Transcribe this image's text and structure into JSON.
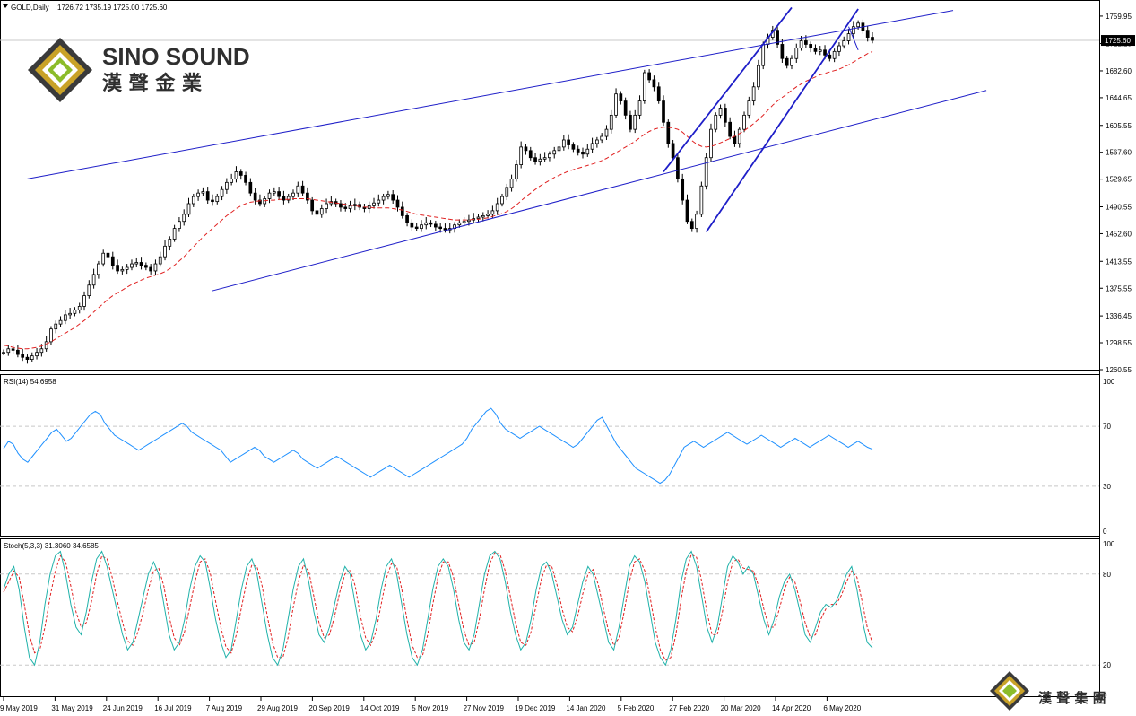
{
  "header": {
    "symbol_title": "GOLD,Daily",
    "ohlc": "1726.72 1735.19 1725.00 1725.60"
  },
  "brand": {
    "name_en": "SINO SOUND",
    "name_cn": "漢 聲 金 業",
    "footer_cn": "漢 聲 集 團"
  },
  "colors": {
    "candle": "#000000",
    "channel_line": "#1e1ec8",
    "ma_line": "#e02020",
    "rsi_line": "#1e90ff",
    "stoch_main": "#20b2aa",
    "stoch_signal": "#e02020",
    "grid": "#c8c8c8"
  },
  "chart_data": [
    {
      "type": "candlestick",
      "title": "GOLD,Daily",
      "x_tick_labels": [
        "9 May 2019",
        "31 May 2019",
        "24 Jun 2019",
        "16 Jul 2019",
        "7 Aug 2019",
        "29 Aug 2019",
        "20 Sep 2019",
        "14 Oct 2019",
        "5 Nov 2019",
        "27 Nov 2019",
        "19 Dec 2019",
        "14 Jan 2020",
        "5 Feb 2020",
        "27 Feb 2020",
        "20 Mar 2020",
        "14 Apr 2020",
        "6 May 2020"
      ],
      "y_tick_labels": [
        "1759.95",
        "1721.15",
        "1682.60",
        "1644.65",
        "1605.55",
        "1567.60",
        "1529.65",
        "1490.55",
        "1452.60",
        "1413.55",
        "1375.55",
        "1336.45",
        "1298.55",
        "1260.55"
      ],
      "ylim": [
        1260.55,
        1770
      ],
      "current_price": "1725.60",
      "close_series": [
        1285,
        1290,
        1288,
        1282,
        1278,
        1275,
        1280,
        1285,
        1290,
        1300,
        1318,
        1325,
        1330,
        1338,
        1340,
        1345,
        1350,
        1365,
        1380,
        1395,
        1410,
        1425,
        1420,
        1408,
        1400,
        1402,
        1405,
        1410,
        1412,
        1408,
        1405,
        1400,
        1410,
        1420,
        1435,
        1445,
        1460,
        1470,
        1480,
        1495,
        1505,
        1510,
        1512,
        1500,
        1498,
        1505,
        1515,
        1525,
        1530,
        1540,
        1535,
        1525,
        1510,
        1500,
        1495,
        1502,
        1510,
        1512,
        1505,
        1500,
        1505,
        1510,
        1520,
        1510,
        1500,
        1485,
        1480,
        1488,
        1495,
        1498,
        1495,
        1490,
        1488,
        1492,
        1494,
        1490,
        1488,
        1492,
        1496,
        1500,
        1505,
        1508,
        1500,
        1490,
        1478,
        1468,
        1462,
        1460,
        1465,
        1468,
        1466,
        1462,
        1460,
        1458,
        1460,
        1465,
        1468,
        1470,
        1472,
        1474,
        1476,
        1478,
        1480,
        1485,
        1495,
        1505,
        1518,
        1530,
        1550,
        1575,
        1570,
        1560,
        1555,
        1558,
        1560,
        1565,
        1570,
        1575,
        1585,
        1578,
        1572,
        1568,
        1565,
        1572,
        1580,
        1585,
        1590,
        1600,
        1620,
        1650,
        1640,
        1620,
        1600,
        1620,
        1640,
        1680,
        1670,
        1660,
        1640,
        1610,
        1580,
        1560,
        1530,
        1500,
        1470,
        1460,
        1480,
        1520,
        1560,
        1600,
        1620,
        1630,
        1610,
        1590,
        1580,
        1600,
        1620,
        1640,
        1660,
        1690,
        1720,
        1730,
        1740,
        1720,
        1700,
        1690,
        1700,
        1715,
        1725,
        1720,
        1715,
        1710,
        1712,
        1705,
        1700,
        1710,
        1718,
        1725,
        1735,
        1745,
        1750,
        1740,
        1730,
        1725.6
      ],
      "ma_series": [
        1295,
        1294,
        1292,
        1291,
        1290,
        1290,
        1291,
        1292,
        1294,
        1297,
        1300,
        1304,
        1308,
        1312,
        1316,
        1320,
        1325,
        1330,
        1336,
        1342,
        1348,
        1354,
        1360,
        1365,
        1369,
        1373,
        1377,
        1381,
        1384,
        1387,
        1390,
        1392,
        1394,
        1396,
        1399,
        1403,
        1408,
        1414,
        1420,
        1427,
        1434,
        1441,
        1448,
        1454,
        1460,
        1466,
        1472,
        1478,
        1483,
        1488,
        1492,
        1495,
        1497,
        1498,
        1499,
        1499,
        1500,
        1500,
        1501,
        1501,
        1501,
        1502,
        1502,
        1502,
        1502,
        1501,
        1500,
        1499,
        1498,
        1497,
        1496,
        1495,
        1494,
        1493,
        1492,
        1491,
        1490,
        1490,
        1489,
        1489,
        1489,
        1489,
        1488,
        1487,
        1486,
        1484,
        1482,
        1480,
        1479,
        1478,
        1477,
        1476,
        1475,
        1474,
        1473,
        1472,
        1472,
        1472,
        1472,
        1473,
        1473,
        1474,
        1475,
        1477,
        1479,
        1481,
        1484,
        1488,
        1493,
        1499,
        1505,
        1510,
        1515,
        1520,
        1524,
        1528,
        1532,
        1535,
        1538,
        1541,
        1543,
        1545,
        1547,
        1549,
        1551,
        1553,
        1556,
        1559,
        1563,
        1567,
        1571,
        1575,
        1579,
        1583,
        1588,
        1593,
        1597,
        1600,
        1602,
        1603,
        1603,
        1602,
        1600,
        1596,
        1590,
        1584,
        1579,
        1576,
        1575,
        1576,
        1578,
        1581,
        1584,
        1587,
        1590,
        1594,
        1598,
        1603,
        1608,
        1614,
        1620,
        1627,
        1634,
        1640,
        1645,
        1650,
        1655,
        1660,
        1664,
        1668,
        1671,
        1674,
        1677,
        1679,
        1681,
        1683,
        1685,
        1688,
        1691,
        1695,
        1699,
        1703,
        1707,
        1710
      ]
    },
    {
      "type": "line",
      "title": "RSI(14) 54.6958",
      "y_tick_labels": [
        "100",
        "70",
        "30",
        "0"
      ],
      "ylim": [
        0,
        100
      ],
      "values": [
        55,
        60,
        58,
        52,
        48,
        46,
        50,
        54,
        58,
        62,
        66,
        68,
        64,
        60,
        62,
        66,
        70,
        74,
        78,
        80,
        78,
        72,
        68,
        64,
        62,
        60,
        58,
        56,
        54,
        56,
        58,
        60,
        62,
        64,
        66,
        68,
        70,
        72,
        70,
        66,
        64,
        62,
        60,
        58,
        56,
        54,
        50,
        46,
        48,
        50,
        52,
        54,
        56,
        54,
        50,
        48,
        46,
        48,
        50,
        52,
        54,
        52,
        48,
        46,
        44,
        42,
        44,
        46,
        48,
        50,
        48,
        46,
        44,
        42,
        40,
        38,
        36,
        38,
        40,
        42,
        44,
        42,
        40,
        38,
        36,
        38,
        40,
        42,
        44,
        46,
        48,
        50,
        52,
        54,
        56,
        58,
        62,
        68,
        72,
        76,
        80,
        82,
        78,
        72,
        68,
        66,
        64,
        62,
        64,
        66,
        68,
        70,
        68,
        66,
        64,
        62,
        60,
        58,
        56,
        58,
        62,
        66,
        70,
        74,
        76,
        70,
        64,
        58,
        54,
        50,
        46,
        42,
        40,
        38,
        36,
        34,
        32,
        34,
        38,
        44,
        50,
        56,
        58,
        60,
        58,
        56,
        58,
        60,
        62,
        64,
        66,
        64,
        62,
        60,
        58,
        60,
        62,
        64,
        62,
        60,
        58,
        56,
        58,
        60,
        62,
        60,
        58,
        56,
        58,
        60,
        62,
        64,
        62,
        60,
        58,
        56,
        58,
        60,
        58,
        56,
        54.6958
      ]
    },
    {
      "type": "line",
      "title": "Stoch(5,3,3) 31.3060 34.6585",
      "y_tick_labels": [
        "100",
        "80",
        "20",
        "0"
      ],
      "ylim": [
        0,
        100
      ],
      "series": [
        {
          "name": "31.3060",
          "values": [
            70,
            80,
            85,
            70,
            45,
            25,
            20,
            35,
            60,
            80,
            92,
            95,
            80,
            60,
            45,
            40,
            55,
            75,
            90,
            95,
            85,
            70,
            55,
            40,
            30,
            35,
            50,
            65,
            80,
            88,
            80,
            60,
            40,
            30,
            35,
            50,
            70,
            85,
            92,
            88,
            70,
            50,
            35,
            25,
            30,
            50,
            70,
            85,
            90,
            80,
            60,
            40,
            25,
            20,
            30,
            50,
            70,
            85,
            90,
            75,
            55,
            40,
            35,
            45,
            60,
            75,
            85,
            80,
            60,
            40,
            30,
            35,
            50,
            70,
            85,
            90,
            80,
            60,
            40,
            25,
            20,
            30,
            50,
            70,
            85,
            90,
            85,
            70,
            50,
            35,
            30,
            40,
            60,
            80,
            92,
            95,
            90,
            75,
            55,
            40,
            30,
            35,
            50,
            70,
            85,
            88,
            80,
            65,
            50,
            40,
            45,
            60,
            75,
            85,
            80,
            65,
            50,
            35,
            30,
            45,
            65,
            85,
            92,
            88,
            75,
            55,
            35,
            25,
            20,
            30,
            50,
            75,
            90,
            95,
            85,
            65,
            45,
            35,
            45,
            65,
            85,
            92,
            88,
            80,
            85,
            80,
            65,
            50,
            40,
            50,
            65,
            75,
            80,
            70,
            55,
            40,
            35,
            45,
            55,
            60,
            58,
            62,
            70,
            80,
            85,
            70,
            50,
            35,
            31.306
          ]
        },
        {
          "name": "34.6585",
          "values": [
            68,
            75,
            82,
            78,
            60,
            40,
            28,
            30,
            45,
            65,
            82,
            92,
            88,
            72,
            55,
            45,
            48,
            62,
            80,
            92,
            90,
            78,
            62,
            48,
            36,
            33,
            42,
            55,
            70,
            82,
            84,
            72,
            52,
            38,
            33,
            42,
            58,
            75,
            88,
            90,
            80,
            62,
            45,
            32,
            28,
            40,
            58,
            75,
            86,
            85,
            72,
            52,
            35,
            25,
            25,
            38,
            58,
            75,
            86,
            82,
            65,
            48,
            38,
            40,
            52,
            68,
            80,
            83,
            72,
            52,
            38,
            33,
            42,
            60,
            77,
            87,
            85,
            70,
            50,
            33,
            25,
            26,
            40,
            60,
            78,
            88,
            88,
            78,
            60,
            43,
            33,
            35,
            50,
            70,
            87,
            94,
            93,
            82,
            65,
            48,
            35,
            33,
            42,
            60,
            77,
            86,
            85,
            73,
            57,
            45,
            42,
            52,
            67,
            80,
            83,
            73,
            57,
            42,
            33,
            38,
            55,
            75,
            88,
            90,
            82,
            65,
            45,
            30,
            23,
            25,
            40,
            63,
            82,
            93,
            91,
            75,
            55,
            40,
            40,
            55,
            75,
            88,
            90,
            84,
            83,
            82,
            72,
            57,
            45,
            45,
            57,
            70,
            78,
            75,
            62,
            48,
            38,
            40,
            50,
            57,
            60,
            60,
            66,
            75,
            82,
            78,
            62,
            45,
            34.6585
          ]
        }
      ]
    }
  ]
}
